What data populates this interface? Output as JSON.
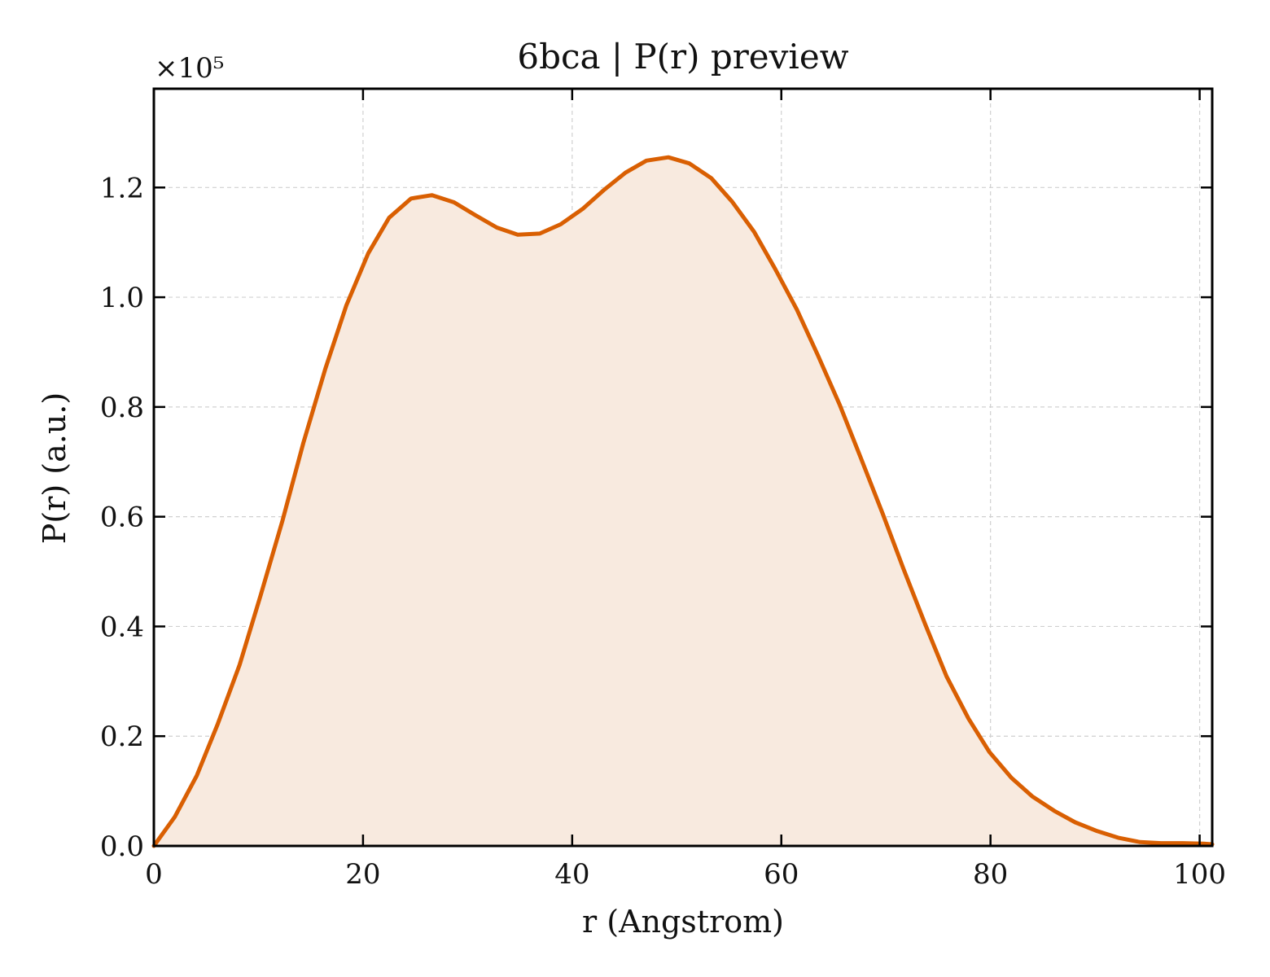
{
  "chart_data": {
    "type": "area",
    "title": "6bca | P(r) preview",
    "xlabel": "r (Angstrom)",
    "ylabel": "P(r) (a.u.)",
    "y_multiplier_label": "×10⁵",
    "xlim": [
      0,
      101.2
    ],
    "ylim": [
      0,
      1.38
    ],
    "y_scale": "×1e5",
    "x_ticks": [
      0,
      20,
      40,
      60,
      80,
      100
    ],
    "x_tick_labels": [
      "0",
      "20",
      "40",
      "60",
      "80",
      "100"
    ],
    "y_ticks": [
      0.0,
      0.2,
      0.4,
      0.6,
      0.8,
      1.0,
      1.2
    ],
    "y_tick_labels": [
      "0.0",
      "0.2",
      "0.4",
      "0.6",
      "0.8",
      "1.0",
      "1.2"
    ],
    "grid": true,
    "legend": "none",
    "series": [
      {
        "color": "#d95f02",
        "fill_color": "#f8eadf",
        "x": [
          0,
          2.0,
          4.1,
          6.1,
          8.2,
          10.2,
          12.3,
          14.3,
          16.4,
          18.4,
          20.5,
          22.5,
          24.6,
          26.6,
          28.7,
          30.7,
          32.8,
          34.8,
          36.9,
          38.9,
          41.0,
          43.0,
          45.1,
          47.1,
          49.2,
          51.2,
          53.3,
          55.3,
          57.4,
          59.4,
          61.5,
          63.5,
          65.6,
          67.6,
          69.7,
          71.7,
          73.8,
          75.8,
          77.9,
          79.9,
          82.0,
          84.0,
          86.1,
          88.1,
          90.2,
          92.2,
          94.3,
          96.3,
          98.4,
          100.4,
          101.2
        ],
        "y": [
          0.0,
          0.053,
          0.128,
          0.222,
          0.33,
          0.456,
          0.593,
          0.735,
          0.87,
          0.985,
          1.08,
          1.145,
          1.18,
          1.186,
          1.173,
          1.15,
          1.127,
          1.114,
          1.116,
          1.133,
          1.161,
          1.195,
          1.227,
          1.249,
          1.255,
          1.244,
          1.217,
          1.174,
          1.119,
          1.052,
          0.977,
          0.894,
          0.803,
          0.707,
          0.605,
          0.504,
          0.402,
          0.309,
          0.232,
          0.171,
          0.124,
          0.09,
          0.064,
          0.043,
          0.027,
          0.015,
          0.007,
          0.005,
          0.005,
          0.004,
          0.003
        ]
      }
    ]
  }
}
